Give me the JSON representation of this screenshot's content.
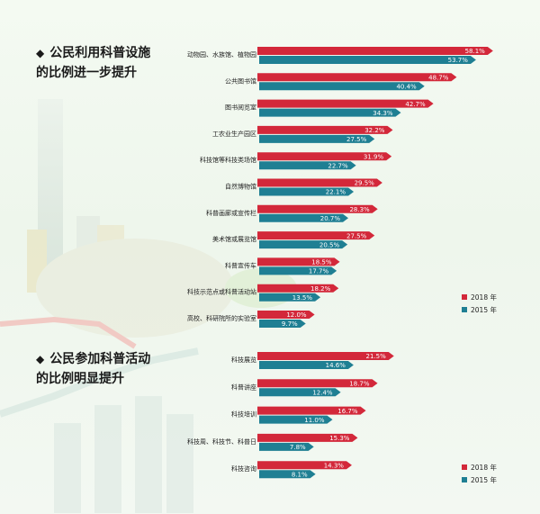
{
  "colors": {
    "y2018": "#d3283a",
    "y2015": "#1f7f93",
    "bar_shadow": "#8a1420"
  },
  "sections": [
    {
      "bullet": "◆",
      "title_line1": "公民利用科普设施",
      "title_line2": "的比例进一步提升"
    },
    {
      "bullet": "◆",
      "title_line1": "公民参加科普活动",
      "title_line2": "的比例明显提升"
    }
  ],
  "chart_data": [
    {
      "type": "bar",
      "orientation": "horizontal",
      "title": "公民利用科普设施的比例进一步提升",
      "categories": [
        "动物园、水族馆、植物园",
        "公共图书馆",
        "图书阅览室",
        "工农业生产园区",
        "科技馆等科技类场馆",
        "自然博物馆",
        "科普画廊或宣传栏",
        "美术馆或展览馆",
        "科普宣传车",
        "科技示范点或科普活动站",
        "高校、科研院所的实验室"
      ],
      "series": [
        {
          "name": "2018 年",
          "values": [
            58.1,
            48.7,
            42.7,
            32.2,
            31.9,
            29.5,
            28.3,
            27.5,
            18.5,
            18.2,
            12.0
          ],
          "labels": [
            "58.1%",
            "48.7%",
            "42.7%",
            "32.2%",
            "31.9%",
            "29.5%",
            "28.3%",
            "27.5%",
            "18.5%",
            "18.2%",
            "12.0%"
          ]
        },
        {
          "name": "2015 年",
          "values": [
            53.7,
            40.4,
            34.3,
            27.5,
            22.7,
            22.1,
            20.7,
            20.5,
            17.7,
            13.5,
            9.7
          ],
          "labels": [
            "53.7%",
            "40.4%",
            "34.3%",
            "27.5%",
            "22.7%",
            "22.1%",
            "20.7%",
            "20.5%",
            "17.7%",
            "13.5%",
            "9.7%"
          ]
        }
      ],
      "legend": "bottom-right"
    },
    {
      "type": "bar",
      "orientation": "horizontal",
      "title": "公民参加科普活动的比例明显提升",
      "categories": [
        "科技展览",
        "科普讲座",
        "科技培训",
        "科技周、科技节、科普日",
        "科技咨询"
      ],
      "series": [
        {
          "name": "2018 年",
          "values": [
            21.5,
            18.7,
            16.7,
            15.3,
            14.3
          ],
          "labels": [
            "21.5%",
            "18.7%",
            "16.7%",
            "15.3%",
            "14.3%"
          ]
        },
        {
          "name": "2015 年",
          "values": [
            14.6,
            12.4,
            11.0,
            7.8,
            8.1
          ],
          "labels": [
            "14.6%",
            "12.4%",
            "11.0%",
            "7.8%",
            "8.1%"
          ]
        }
      ],
      "legend": "bottom-right"
    }
  ]
}
